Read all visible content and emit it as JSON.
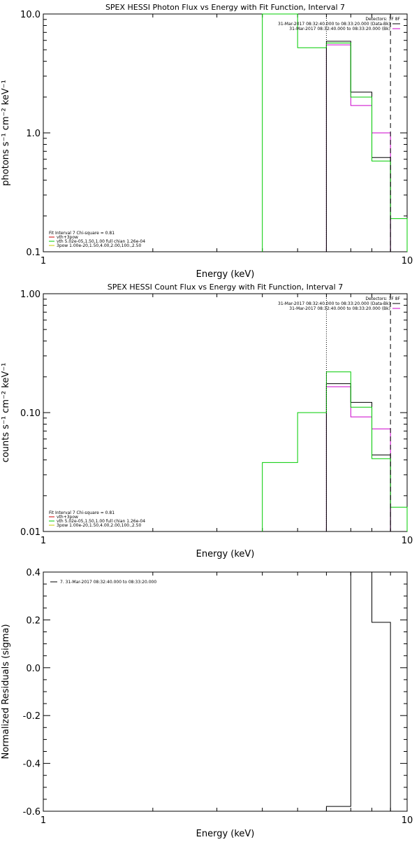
{
  "chart_data": [
    {
      "type": "line",
      "title": "SPEX HESSI Photon Flux vs Energy with Fit Function, Interval 7",
      "xlabel": "Energy (keV)",
      "ylabel": "photons s⁻¹ cm⁻² keV⁻¹",
      "xscale": "log",
      "yscale": "log",
      "xlim": [
        1,
        10
      ],
      "ylim": [
        0.1,
        10
      ],
      "x_ticks": [
        "1",
        "10"
      ],
      "y_ticks": [
        {
          "value": 0.1,
          "label": "0.1"
        },
        {
          "value": 1,
          "label": "1.0"
        },
        {
          "value": 10,
          "label": "10.0"
        }
      ],
      "legend_top": {
        "placement": "top-right",
        "header": "Detectors: 3F 8F",
        "entries": [
          {
            "label": "31-Mar-2017 08:32:40.000 to 08:33:20.000 (Data-Bk)",
            "color": "#000000"
          },
          {
            "label": "31-Mar-2017 08:32:40.000 to 08:33:20.000 (Bk)",
            "color": "#cc00cc"
          }
        ]
      },
      "legend_bottom": {
        "placement": "bottom-left",
        "header": "Fit Interval 7   Chi-square = 0.81",
        "entries": [
          {
            "label": "vth+3pow",
            "color": "#cc0000"
          },
          {
            "label": "vth 5.02e-05,1.50,1.00  full chian 1.26e-04",
            "color": "#00cc00"
          },
          {
            "label": "3pow 1.00e-20,1.50,4.00,2.00,100.,2.50",
            "color": "#cccc00"
          }
        ]
      },
      "vlines": [
        {
          "x": 6.0,
          "style": "dotted",
          "color": "#000000"
        },
        {
          "x": 9.0,
          "style": "dashed",
          "color": "#000000"
        }
      ],
      "series": [
        {
          "color": "#cc00cc",
          "step_edges": [
            6,
            7,
            8,
            9
          ],
          "values": [
            5.5,
            1.7,
            1.0
          ]
        },
        {
          "color": "#000000",
          "step_edges": [
            6,
            7,
            8,
            9
          ],
          "values": [
            5.9,
            2.2,
            0.62
          ]
        },
        {
          "color": "#00cc00",
          "step_edges": [
            4,
            5,
            6,
            7,
            8,
            9,
            10
          ],
          "values": [
            10,
            5.2,
            5.7,
            2.0,
            0.58,
            0.19
          ]
        }
      ]
    },
    {
      "type": "line",
      "title": "SPEX HESSI Count Flux vs Energy with Fit Function, Interval 7",
      "xlabel": "Energy (keV)",
      "ylabel": "counts s⁻¹ cm⁻² keV⁻¹",
      "xscale": "log",
      "yscale": "log",
      "xlim": [
        1,
        10
      ],
      "ylim": [
        0.01,
        1
      ],
      "x_ticks": [
        "1",
        "10"
      ],
      "y_ticks": [
        {
          "value": 0.01,
          "label": "0.01"
        },
        {
          "value": 0.1,
          "label": "0.10"
        },
        {
          "value": 1,
          "label": "1.00"
        }
      ],
      "legend_top": {
        "placement": "top-right",
        "header": "Detectors: 3F 8F",
        "entries": [
          {
            "label": "31-Mar-2017 08:32:40.000 to 08:33:20.000 (Data-Bk)",
            "color": "#000000"
          },
          {
            "label": "31-Mar-2017 08:32:40.000 to 08:33:20.000 (Bk)",
            "color": "#cc00cc"
          }
        ]
      },
      "legend_bottom": {
        "placement": "bottom-left",
        "header": "Fit Interval 7   Chi-square = 0.81",
        "entries": [
          {
            "label": "vth+3pow",
            "color": "#cc0000"
          },
          {
            "label": "vth 5.02e-05,1.50,1.00  full chian 1.26e-04",
            "color": "#00cc00"
          },
          {
            "label": "3pow 1.00e-20,1.50,4.00,2.00,100.,2.50",
            "color": "#cccc00"
          }
        ]
      },
      "vlines": [
        {
          "x": 6.0,
          "style": "dotted",
          "color": "#000000"
        },
        {
          "x": 9.0,
          "style": "dashed",
          "color": "#000000"
        }
      ],
      "series": [
        {
          "color": "#cc00cc",
          "step_edges": [
            6,
            7,
            8,
            9
          ],
          "values": [
            0.165,
            0.092,
            0.073
          ]
        },
        {
          "color": "#000000",
          "step_edges": [
            6,
            7,
            8,
            9
          ],
          "values": [
            0.175,
            0.122,
            0.044
          ]
        },
        {
          "color": "#00cc00",
          "step_edges": [
            4,
            5,
            6,
            7,
            8,
            9,
            10
          ],
          "values": [
            0.038,
            0.1,
            0.22,
            0.111,
            0.041,
            0.016
          ]
        }
      ]
    },
    {
      "type": "line",
      "title": "",
      "xlabel": "Energy (keV)",
      "ylabel": "Normalized Residuals (sigma)",
      "xscale": "log",
      "yscale": "linear",
      "xlim": [
        1,
        10
      ],
      "ylim": [
        -0.6,
        0.4
      ],
      "x_ticks": [
        "1",
        "10"
      ],
      "y_ticks": [
        {
          "value": 0.4,
          "label": "0.4"
        },
        {
          "value": 0.2,
          "label": "0.2"
        },
        {
          "value": 0.0,
          "label": "0.0"
        },
        {
          "value": -0.2,
          "label": "-0.2"
        },
        {
          "value": -0.4,
          "label": "-0.4"
        },
        {
          "value": -0.6,
          "label": "-0.6"
        }
      ],
      "legend_top": {
        "placement": "top-left",
        "header": "",
        "entries": [
          {
            "label": "7. 31-Mar-2017 08:32:40.000 to 08:33:20.000",
            "color": "#000000"
          }
        ]
      },
      "vlines": [],
      "series": [
        {
          "color": "#000000",
          "step_edges": [
            6,
            7,
            8,
            9
          ],
          "values": [
            -0.58,
            0.4,
            0.19
          ]
        }
      ]
    }
  ]
}
